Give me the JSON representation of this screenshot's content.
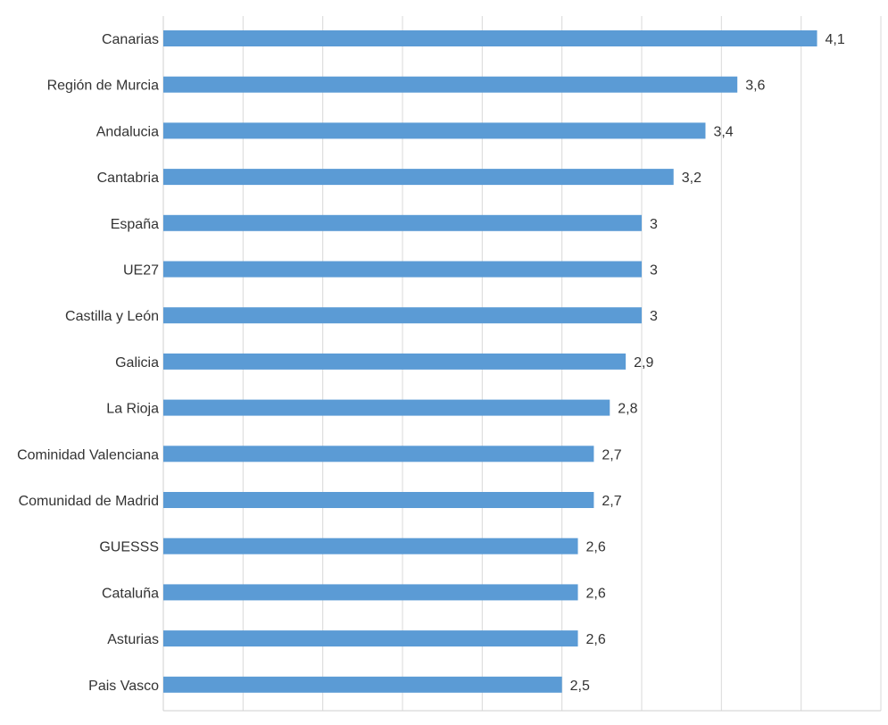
{
  "chart_data": {
    "type": "bar",
    "orientation": "horizontal",
    "title": "",
    "xlabel": "",
    "ylabel": "",
    "xlim": [
      0,
      4.5
    ],
    "grid": true,
    "legend": "none",
    "bar_color": "#5b9bd5",
    "gridline_color": "#d9d9d9",
    "categories": [
      "Canarias",
      "Región de Murcia",
      "Andalucia",
      "Cantabria",
      "España",
      "UE27",
      "Castilla y León",
      "Galicia",
      "La Rioja",
      "Cominidad Valenciana",
      "Comunidad de Madrid",
      "GUESSS",
      "Cataluña",
      "Asturias",
      "Pais Vasco"
    ],
    "values": [
      4.1,
      3.6,
      3.4,
      3.2,
      3,
      3,
      3,
      2.9,
      2.8,
      2.7,
      2.7,
      2.6,
      2.6,
      2.6,
      2.5
    ],
    "value_labels": [
      "4,1",
      "3,6",
      "3,4",
      "3,2",
      "3",
      "3",
      "3",
      "2,9",
      "2,8",
      "2,7",
      "2,7",
      "2,6",
      "2,6",
      "2,6",
      "2,5"
    ]
  }
}
